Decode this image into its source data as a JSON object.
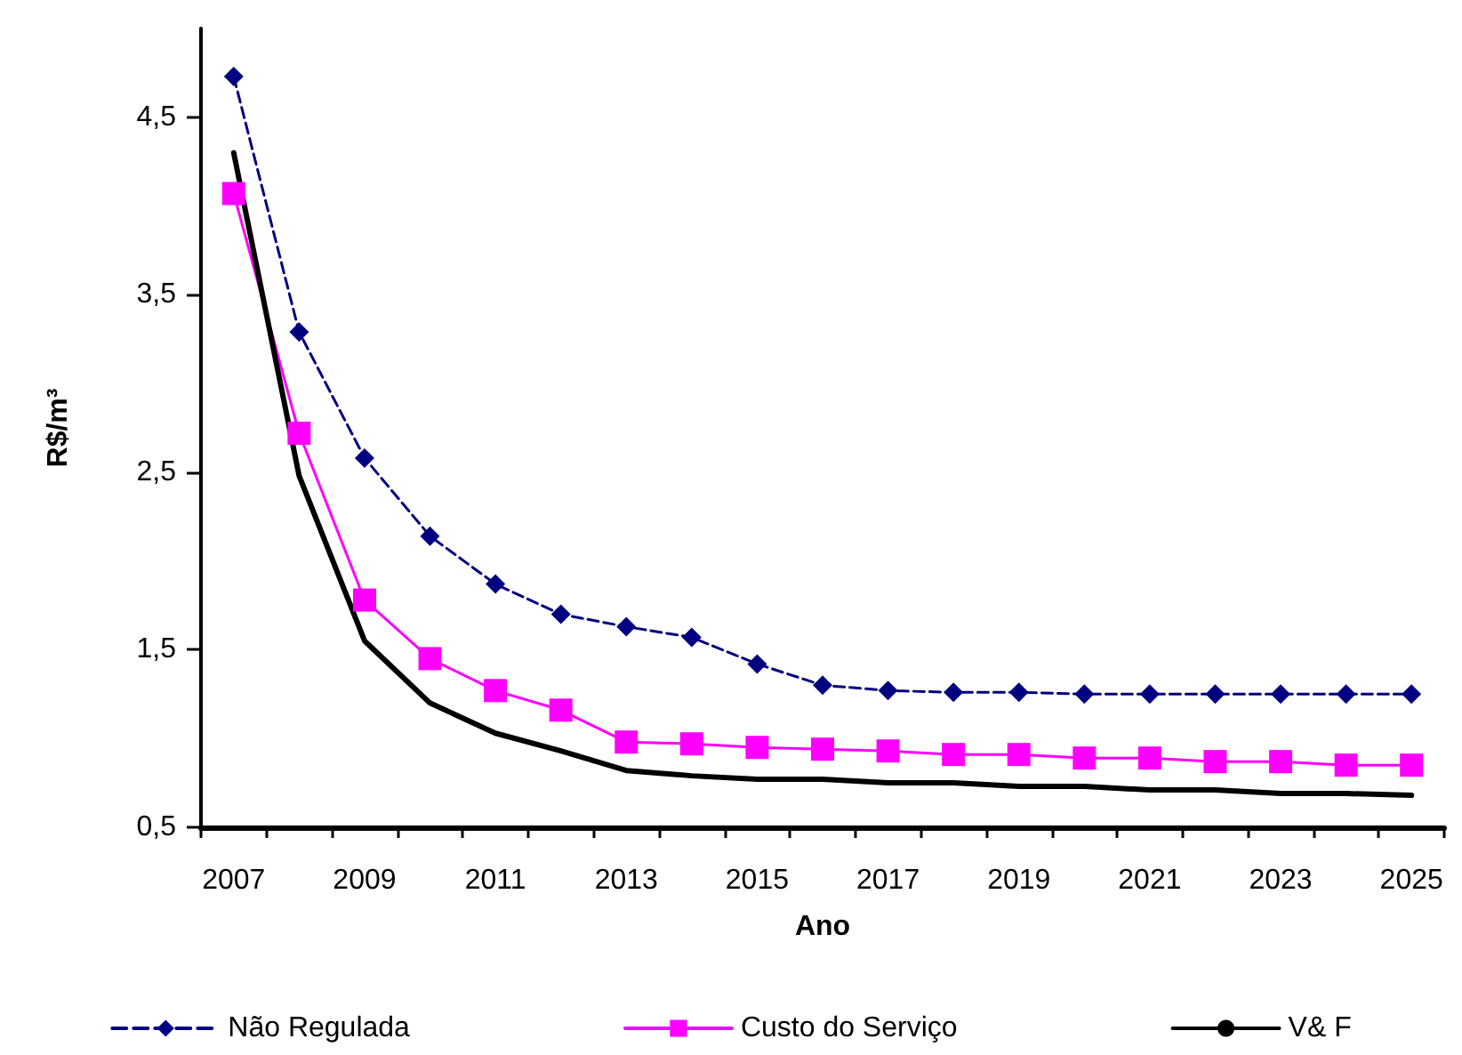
{
  "chart_data": {
    "type": "line",
    "xlabel": "Ano",
    "ylabel": "R$/m³",
    "categories": [
      "2007",
      null,
      "2009",
      null,
      "2011",
      null,
      "2013",
      null,
      "2015",
      null,
      "2017",
      null,
      "2019",
      null,
      "2021",
      null,
      "2023",
      null,
      "2025"
    ],
    "ylim": [
      0.5,
      5
    ],
    "yticks": [
      {
        "value": 0.5,
        "label": "0,5"
      },
      {
        "value": 1.5,
        "label": "1,5"
      },
      {
        "value": 2.5,
        "label": "2,5"
      },
      {
        "value": 3.5,
        "label": "3,5"
      },
      {
        "value": 4.5,
        "label": "4,5"
      }
    ],
    "grid": false,
    "legend": "bottom",
    "series": [
      {
        "name": "Não Regulada",
        "color": "#000080",
        "marker": "diamond",
        "line_style": "dashed",
        "values": [
          4.73,
          3.29,
          2.58,
          2.14,
          1.87,
          1.7,
          1.63,
          1.57,
          1.42,
          1.3,
          1.27,
          1.26,
          1.26,
          1.25,
          1.25,
          1.25,
          1.25,
          1.25,
          1.25
        ]
      },
      {
        "name": "Custo do Serviço",
        "color": "#ff00ff",
        "marker": "square",
        "line_style": "solid",
        "values": [
          4.07,
          2.72,
          1.78,
          1.45,
          1.27,
          1.16,
          0.98,
          0.97,
          0.95,
          0.94,
          0.93,
          0.91,
          0.91,
          0.89,
          0.89,
          0.87,
          0.87,
          0.85,
          0.85
        ]
      },
      {
        "name": "V& F",
        "color": "#000000",
        "marker": "none",
        "line_style": "solid",
        "values": [
          4.3,
          2.48,
          1.55,
          1.2,
          1.03,
          0.93,
          0.82,
          0.79,
          0.77,
          0.77,
          0.75,
          0.75,
          0.73,
          0.73,
          0.71,
          0.71,
          0.69,
          0.69,
          0.68
        ]
      }
    ]
  }
}
